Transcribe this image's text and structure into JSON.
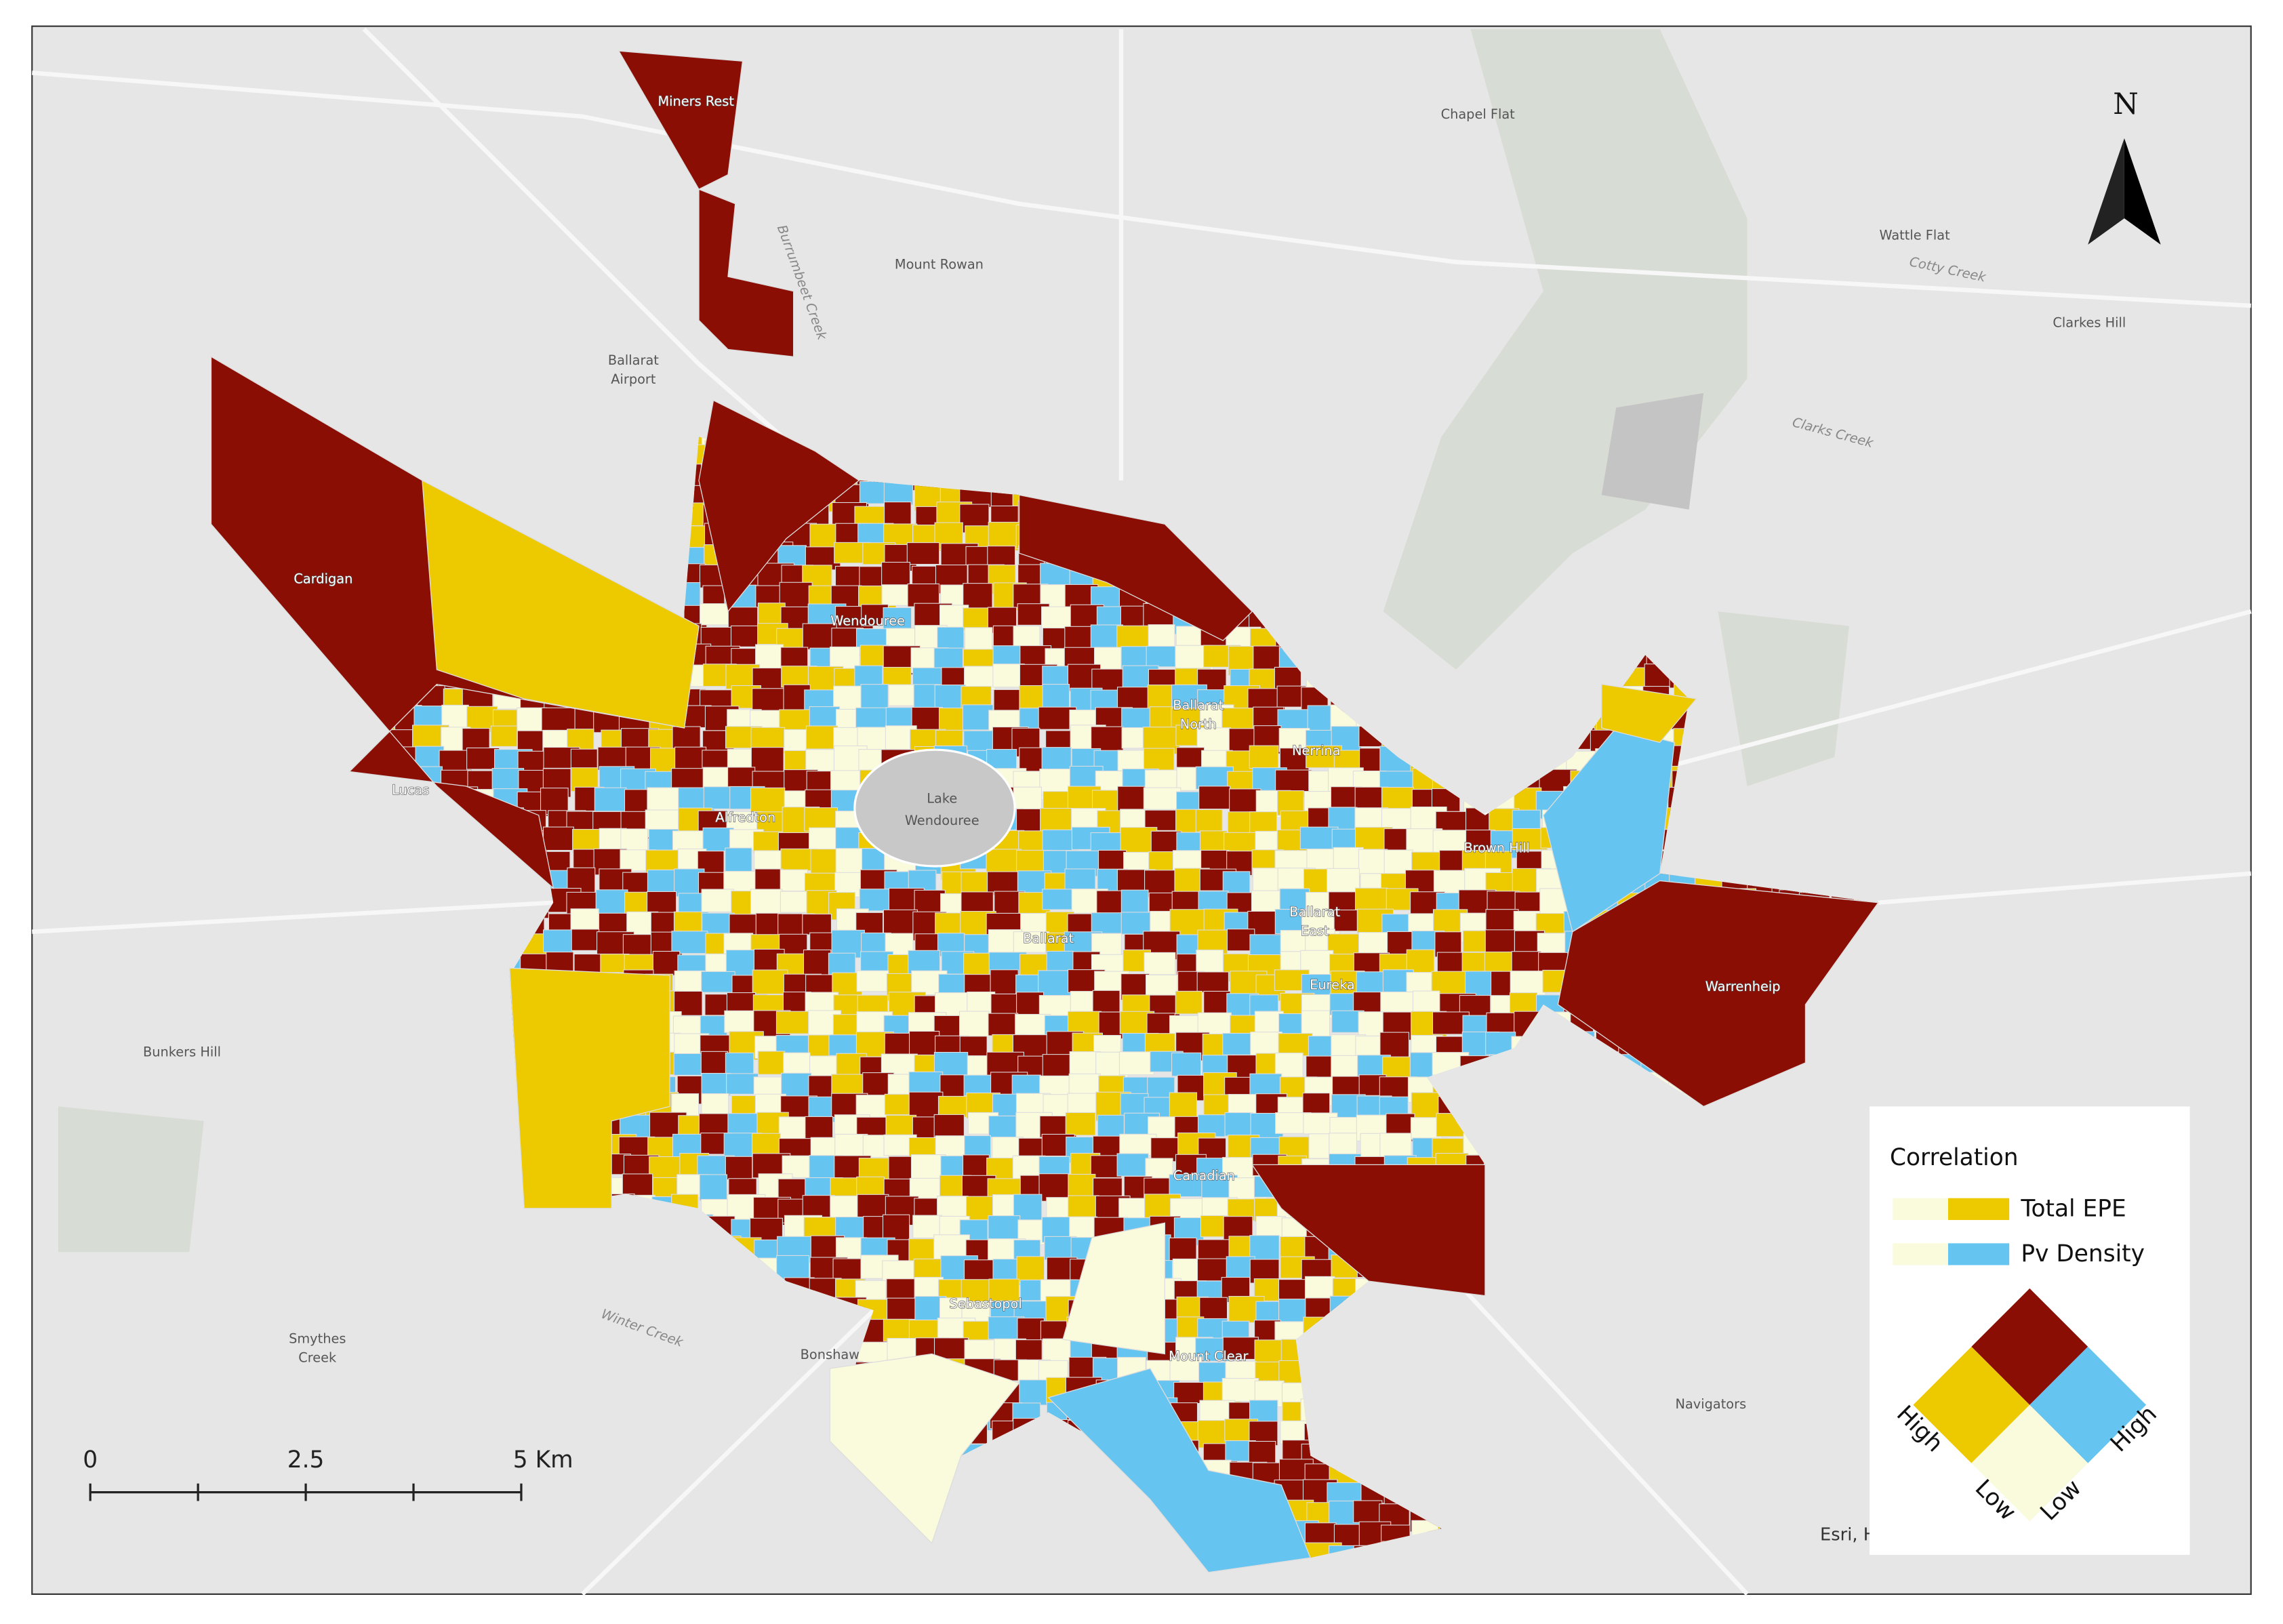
{
  "map": {
    "places": [
      "Miners Rest",
      "Mount Rowan",
      "Chapel Flat",
      "Wattle Flat",
      "Clarkes Hill",
      "Ballarat",
      "Airport",
      "Cardigan",
      "Wendouree",
      "Lake",
      "Wendouree",
      "Alfredton",
      "Lucas",
      "Ballarat",
      "North",
      "Nerrina",
      "Brown Hill",
      "Ballarat",
      "East",
      "Ballarat",
      "Eureka",
      "Warrenheip",
      "Bunkers Hill",
      "Sebastopol",
      "Canadian",
      "Mount Clear",
      "Bonshaw",
      "Smythes",
      "Creek",
      "Navigators"
    ],
    "creeks": [
      "Burrumbeet Creek",
      "Winter Creek",
      "Clarks Creek",
      "Cotty Creek"
    ],
    "north": "N",
    "scale_bar": [
      "0",
      "2.5",
      "5 Km"
    ],
    "attribution": "Esri, HERE,"
  },
  "legend": {
    "title": "Correlation",
    "items": [
      "Total EPE",
      "Pv Density"
    ],
    "axis_labels": [
      "High",
      "Low",
      "Low",
      "High"
    ]
  }
}
